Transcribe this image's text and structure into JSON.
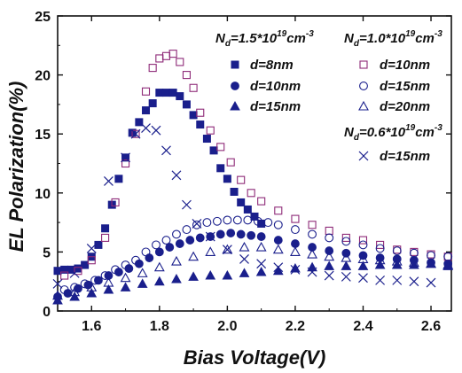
{
  "colors": {
    "navy": "#1a1f8c",
    "purple": "#8e2a78",
    "ink": "#111111"
  },
  "chart_data": {
    "type": "scatter",
    "xlabel": "Bias Voltage(V)",
    "ylabel": "EL Polarization(%)",
    "xlim": [
      1.5,
      2.66
    ],
    "ylim": [
      0,
      25
    ],
    "xticks": [
      "1.6",
      "1.8",
      "2.0",
      "2.2",
      "2.4",
      "2.6"
    ],
    "yticks": [
      "0",
      "5",
      "10",
      "15",
      "20",
      "25"
    ],
    "grid": false,
    "legend_groups": [
      {
        "nd_prefix": "N",
        "nd_sub": "d",
        "nd_text": "=1.5*10",
        "nd_exp": "19",
        "nd_unit": "cm",
        "nd_unit_exp": "-3"
      },
      {
        "nd_prefix": "N",
        "nd_sub": "d",
        "nd_text": "=1.0*10",
        "nd_exp": "19",
        "nd_unit": "cm",
        "nd_unit_exp": "-3"
      },
      {
        "nd_prefix": "N",
        "nd_sub": "d",
        "nd_text": "=0.6*10",
        "nd_exp": "19",
        "nd_unit": "cm",
        "nd_unit_exp": "-3"
      }
    ],
    "series": [
      {
        "name": "d=8nm",
        "group": 0,
        "marker": "square",
        "filled": true,
        "color": "#1a1f8c",
        "x": [
          1.5,
          1.52,
          1.54,
          1.56,
          1.58,
          1.6,
          1.62,
          1.64,
          1.66,
          1.68,
          1.7,
          1.72,
          1.74,
          1.76,
          1.78,
          1.8,
          1.82,
          1.84,
          1.86,
          1.88,
          1.9,
          1.92,
          1.94,
          1.96,
          1.98,
          2.0,
          2.02,
          2.04,
          2.06,
          2.08,
          2.1
        ],
        "y": [
          3.4,
          3.5,
          3.5,
          3.6,
          3.9,
          4.6,
          5.6,
          7.0,
          9.0,
          11.2,
          13.0,
          15.1,
          16.0,
          17.0,
          17.6,
          18.5,
          18.5,
          18.5,
          18.2,
          17.5,
          16.6,
          15.8,
          14.6,
          13.6,
          12.1,
          11.2,
          10.1,
          9.2,
          8.6,
          8.0,
          7.4
        ]
      },
      {
        "name": "d=10nm",
        "group": 0,
        "marker": "circle",
        "filled": true,
        "color": "#1a1f8c",
        "x": [
          1.5,
          1.53,
          1.56,
          1.59,
          1.62,
          1.65,
          1.68,
          1.71,
          1.74,
          1.77,
          1.8,
          1.83,
          1.86,
          1.89,
          1.92,
          1.95,
          1.98,
          2.01,
          2.04,
          2.07,
          2.1,
          2.15,
          2.2,
          2.25,
          2.3,
          2.35,
          2.4,
          2.45,
          2.5,
          2.55,
          2.6,
          2.65
        ],
        "y": [
          1.2,
          1.5,
          1.9,
          2.2,
          2.6,
          3.0,
          3.3,
          3.6,
          4.0,
          4.5,
          5.0,
          5.4,
          5.7,
          6.0,
          6.2,
          6.3,
          6.5,
          6.6,
          6.5,
          6.4,
          6.3,
          6.0,
          5.7,
          5.4,
          5.1,
          4.9,
          4.7,
          4.5,
          4.4,
          4.3,
          4.1,
          4.0
        ]
      },
      {
        "name": "d=15nm",
        "group": 0,
        "marker": "triangle",
        "filled": true,
        "color": "#1a1f8c",
        "x": [
          1.5,
          1.55,
          1.6,
          1.65,
          1.7,
          1.75,
          1.8,
          1.85,
          1.9,
          1.95,
          2.0,
          2.05,
          2.1,
          2.15,
          2.2,
          2.25,
          2.3,
          2.35,
          2.4,
          2.45,
          2.5,
          2.55,
          2.6,
          2.65
        ],
        "y": [
          0.9,
          1.2,
          1.5,
          1.8,
          2.0,
          2.3,
          2.5,
          2.7,
          2.9,
          3.0,
          3.0,
          3.2,
          3.3,
          3.4,
          3.6,
          3.7,
          3.8,
          3.8,
          3.8,
          3.9,
          3.9,
          3.9,
          4.0,
          3.8
        ]
      },
      {
        "name": "d=10nm",
        "group": 1,
        "marker": "square",
        "filled": false,
        "color": "#8e2a78",
        "x": [
          1.52,
          1.56,
          1.6,
          1.64,
          1.67,
          1.7,
          1.73,
          1.76,
          1.78,
          1.8,
          1.82,
          1.84,
          1.86,
          1.88,
          1.9,
          1.92,
          1.95,
          1.98,
          2.01,
          2.04,
          2.07,
          2.1,
          2.15,
          2.2,
          2.25,
          2.3,
          2.35,
          2.4,
          2.45,
          2.5,
          2.55,
          2.6,
          2.65
        ],
        "y": [
          3.0,
          3.4,
          4.3,
          6.2,
          9.2,
          12.5,
          15.0,
          18.6,
          20.6,
          21.4,
          21.6,
          21.8,
          21.1,
          20.0,
          18.9,
          16.8,
          15.3,
          13.9,
          12.6,
          11.1,
          10.0,
          9.3,
          8.5,
          7.8,
          7.3,
          6.8,
          6.2,
          6.0,
          5.6,
          5.2,
          5.0,
          4.8,
          4.6
        ]
      },
      {
        "name": "d=15nm",
        "group": 1,
        "marker": "circle",
        "filled": false,
        "color": "#1a1f8c",
        "x": [
          1.52,
          1.55,
          1.58,
          1.61,
          1.64,
          1.67,
          1.7,
          1.73,
          1.76,
          1.79,
          1.82,
          1.85,
          1.88,
          1.91,
          1.94,
          1.97,
          2.0,
          2.03,
          2.06,
          2.09,
          2.12,
          2.15,
          2.2,
          2.25,
          2.3,
          2.35,
          2.4,
          2.45,
          2.5,
          2.55,
          2.6,
          2.65
        ],
        "y": [
          1.8,
          2.0,
          2.3,
          2.6,
          3.0,
          3.5,
          3.9,
          4.3,
          5.0,
          5.6,
          6.0,
          6.5,
          6.9,
          7.3,
          7.5,
          7.6,
          7.7,
          7.7,
          7.7,
          7.6,
          7.5,
          7.3,
          6.9,
          6.5,
          6.2,
          5.9,
          5.6,
          5.3,
          5.1,
          4.9,
          4.7,
          4.6
        ]
      },
      {
        "name": "d=20nm",
        "group": 1,
        "marker": "triangle",
        "filled": false,
        "color": "#1a1f8c",
        "x": [
          1.5,
          1.55,
          1.6,
          1.65,
          1.7,
          1.75,
          1.8,
          1.85,
          1.9,
          1.95,
          2.0,
          2.05,
          2.1,
          2.15,
          2.2,
          2.25,
          2.3,
          2.35,
          2.4,
          2.45,
          2.5,
          2.55,
          2.6,
          2.65
        ],
        "y": [
          1.3,
          1.6,
          2.0,
          2.4,
          2.8,
          3.2,
          3.7,
          4.2,
          4.6,
          5.0,
          5.2,
          5.4,
          5.4,
          5.2,
          5.0,
          4.8,
          4.6,
          4.5,
          4.4,
          4.3,
          4.2,
          4.1,
          4.0,
          3.9
        ]
      },
      {
        "name": "d=15nm",
        "group": 2,
        "marker": "cross",
        "filled": false,
        "color": "#1a1f8c",
        "x": [
          1.5,
          1.55,
          1.6,
          1.65,
          1.7,
          1.73,
          1.76,
          1.79,
          1.82,
          1.85,
          1.88,
          1.91,
          1.95,
          2.0,
          2.05,
          2.1,
          2.15,
          2.2,
          2.25,
          2.3,
          2.35,
          2.4,
          2.45,
          2.5,
          2.55,
          2.6
        ],
        "y": [
          2.3,
          3.2,
          5.3,
          11.0,
          13.0,
          15.0,
          15.5,
          15.3,
          13.6,
          11.5,
          9.0,
          7.4,
          6.3,
          5.2,
          4.4,
          4.0,
          3.7,
          3.5,
          3.3,
          3.0,
          2.9,
          2.8,
          2.6,
          2.6,
          2.5,
          2.4
        ]
      }
    ]
  }
}
